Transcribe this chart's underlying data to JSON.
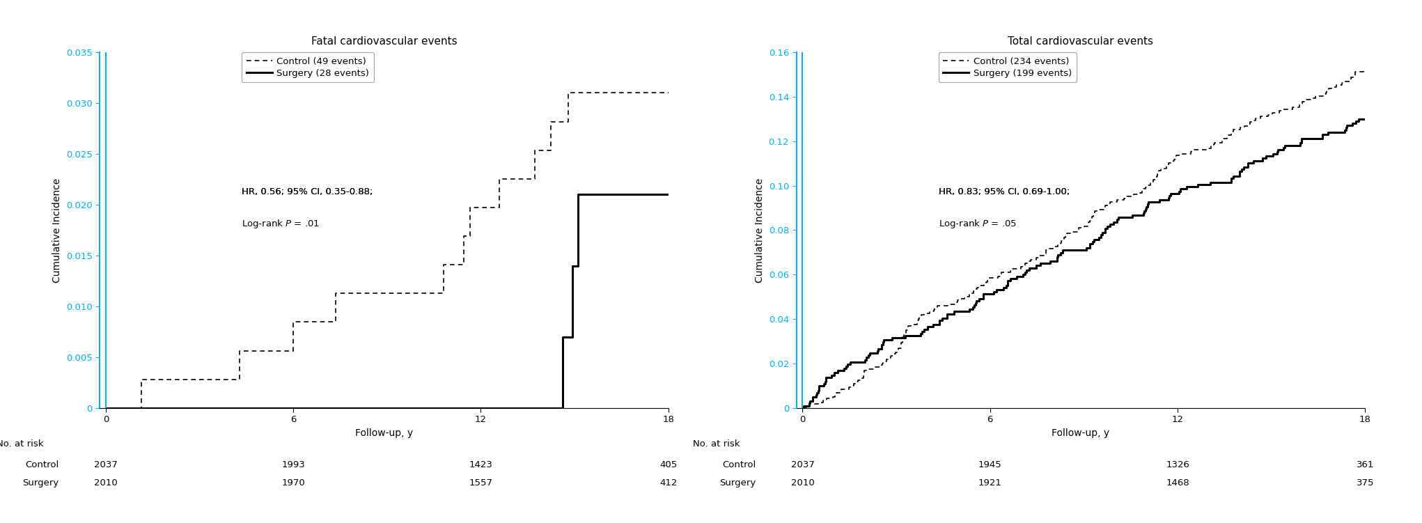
{
  "panel1": {
    "title": "Fatal cardiovascular events",
    "ylabel": "Cumulative Incidence",
    "xlabel": "Follow-up, y",
    "ylim": [
      0,
      0.035
    ],
    "yticks": [
      0,
      0.005,
      0.01,
      0.015,
      0.02,
      0.025,
      0.03,
      0.035
    ],
    "ytick_labels": [
      "0",
      "0.005",
      "0.010",
      "0.015",
      "0.020",
      "0.025",
      "0.030",
      "0.035"
    ],
    "xticks": [
      0,
      6,
      12,
      18
    ],
    "xlim": [
      -0.2,
      18
    ],
    "annotation_line1": "HR, 0.56; 95% CI, 0.35-0.88;",
    "annotation_line2": "Log-rank ",
    "annotation_P": "P",
    "annotation_val": " = .01",
    "legend_control": "Control (49 events)",
    "legend_surgery": "Surgery (28 events)",
    "at_risk_label": "No. at risk",
    "at_risk_times": [
      0,
      6,
      12,
      18
    ],
    "control_at_risk": [
      "2037",
      "1993",
      "1423",
      "405"
    ],
    "surgery_at_risk": [
      "2010",
      "1970",
      "1557",
      "412"
    ],
    "highlighted_ytick": "0"
  },
  "panel2": {
    "title": "Total cardiovascular events",
    "ylabel": "Cumulative Incidence",
    "xlabel": "Follow-up, y",
    "ylim": [
      0,
      0.16
    ],
    "yticks": [
      0,
      0.02,
      0.04,
      0.06,
      0.08,
      0.1,
      0.12,
      0.14,
      0.16
    ],
    "ytick_labels": [
      "0",
      "0.02",
      "0.04",
      "0.06",
      "0.08",
      "0.10",
      "0.12",
      "0.14",
      "0.16"
    ],
    "xticks": [
      0,
      6,
      12,
      18
    ],
    "xlim": [
      -0.2,
      18
    ],
    "annotation_line1": "HR, 0.83; 95% CI, 0.69-1.00;",
    "annotation_line2": "Log-rank ",
    "annotation_P": "P",
    "annotation_val": " = .05",
    "legend_control": "Control (234 events)",
    "legend_surgery": "Surgery (199 events)",
    "at_risk_label": "No. at risk",
    "at_risk_times": [
      0,
      6,
      12,
      18
    ],
    "control_at_risk": [
      "2037",
      "1945",
      "1326",
      "361"
    ],
    "surgery_at_risk": [
      "2010",
      "1921",
      "1468",
      "375"
    ],
    "highlighted_ytick": "0.02"
  },
  "cyan_color": "#00B0F0",
  "background_color": "#ffffff",
  "title_fontsize": 11,
  "label_fontsize": 10,
  "tick_fontsize": 9.5,
  "annotation_fontsize": 9.5,
  "legend_fontsize": 9.5,
  "atrisk_fontsize": 9.5
}
